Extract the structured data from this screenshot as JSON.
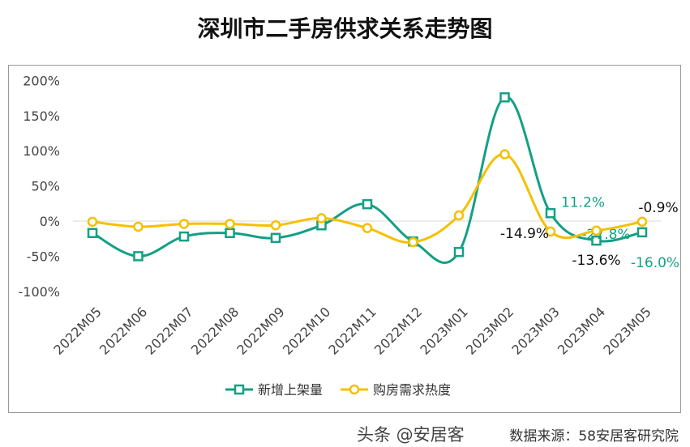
{
  "chart_data": {
    "type": "line",
    "title": "深圳市二手房供求关系走势图",
    "categories": [
      "2022M05",
      "2022M06",
      "2022M07",
      "2022M08",
      "2022M09",
      "2022M10",
      "2022M11",
      "2022M12",
      "2023M01",
      "2023M02",
      "2023M03",
      "2023M04",
      "2023M05"
    ],
    "ylim": [
      -100,
      200
    ],
    "yticks": [
      "200%",
      "150%",
      "100%",
      "50%",
      "0%",
      "-50%",
      "-100%"
    ],
    "grid": false,
    "legend": "bottom",
    "series": [
      {
        "name": "新增上架量",
        "color": "#14a085",
        "marker": "square",
        "values": [
          -17,
          -50,
          -22,
          -17,
          -24,
          -6,
          24,
          -29,
          -44,
          176,
          11.2,
          -27.8,
          -16.0
        ],
        "labels": {
          "10": "11.2%",
          "11": "-27.8%",
          "12": "-16.0%"
        }
      },
      {
        "name": "购房需求热度",
        "color": "#f5c000",
        "marker": "circle",
        "values": [
          -1,
          -8,
          -4,
          -4,
          -6,
          4,
          -10,
          -30,
          8,
          95,
          -14.9,
          -13.6,
          -0.9
        ],
        "labels": {
          "10": "-14.9%",
          "11": "-13.6%",
          "12": "-0.9%"
        }
      }
    ]
  },
  "source": "数据来源：58安居客研究院",
  "watermark": "头条 @安居客"
}
